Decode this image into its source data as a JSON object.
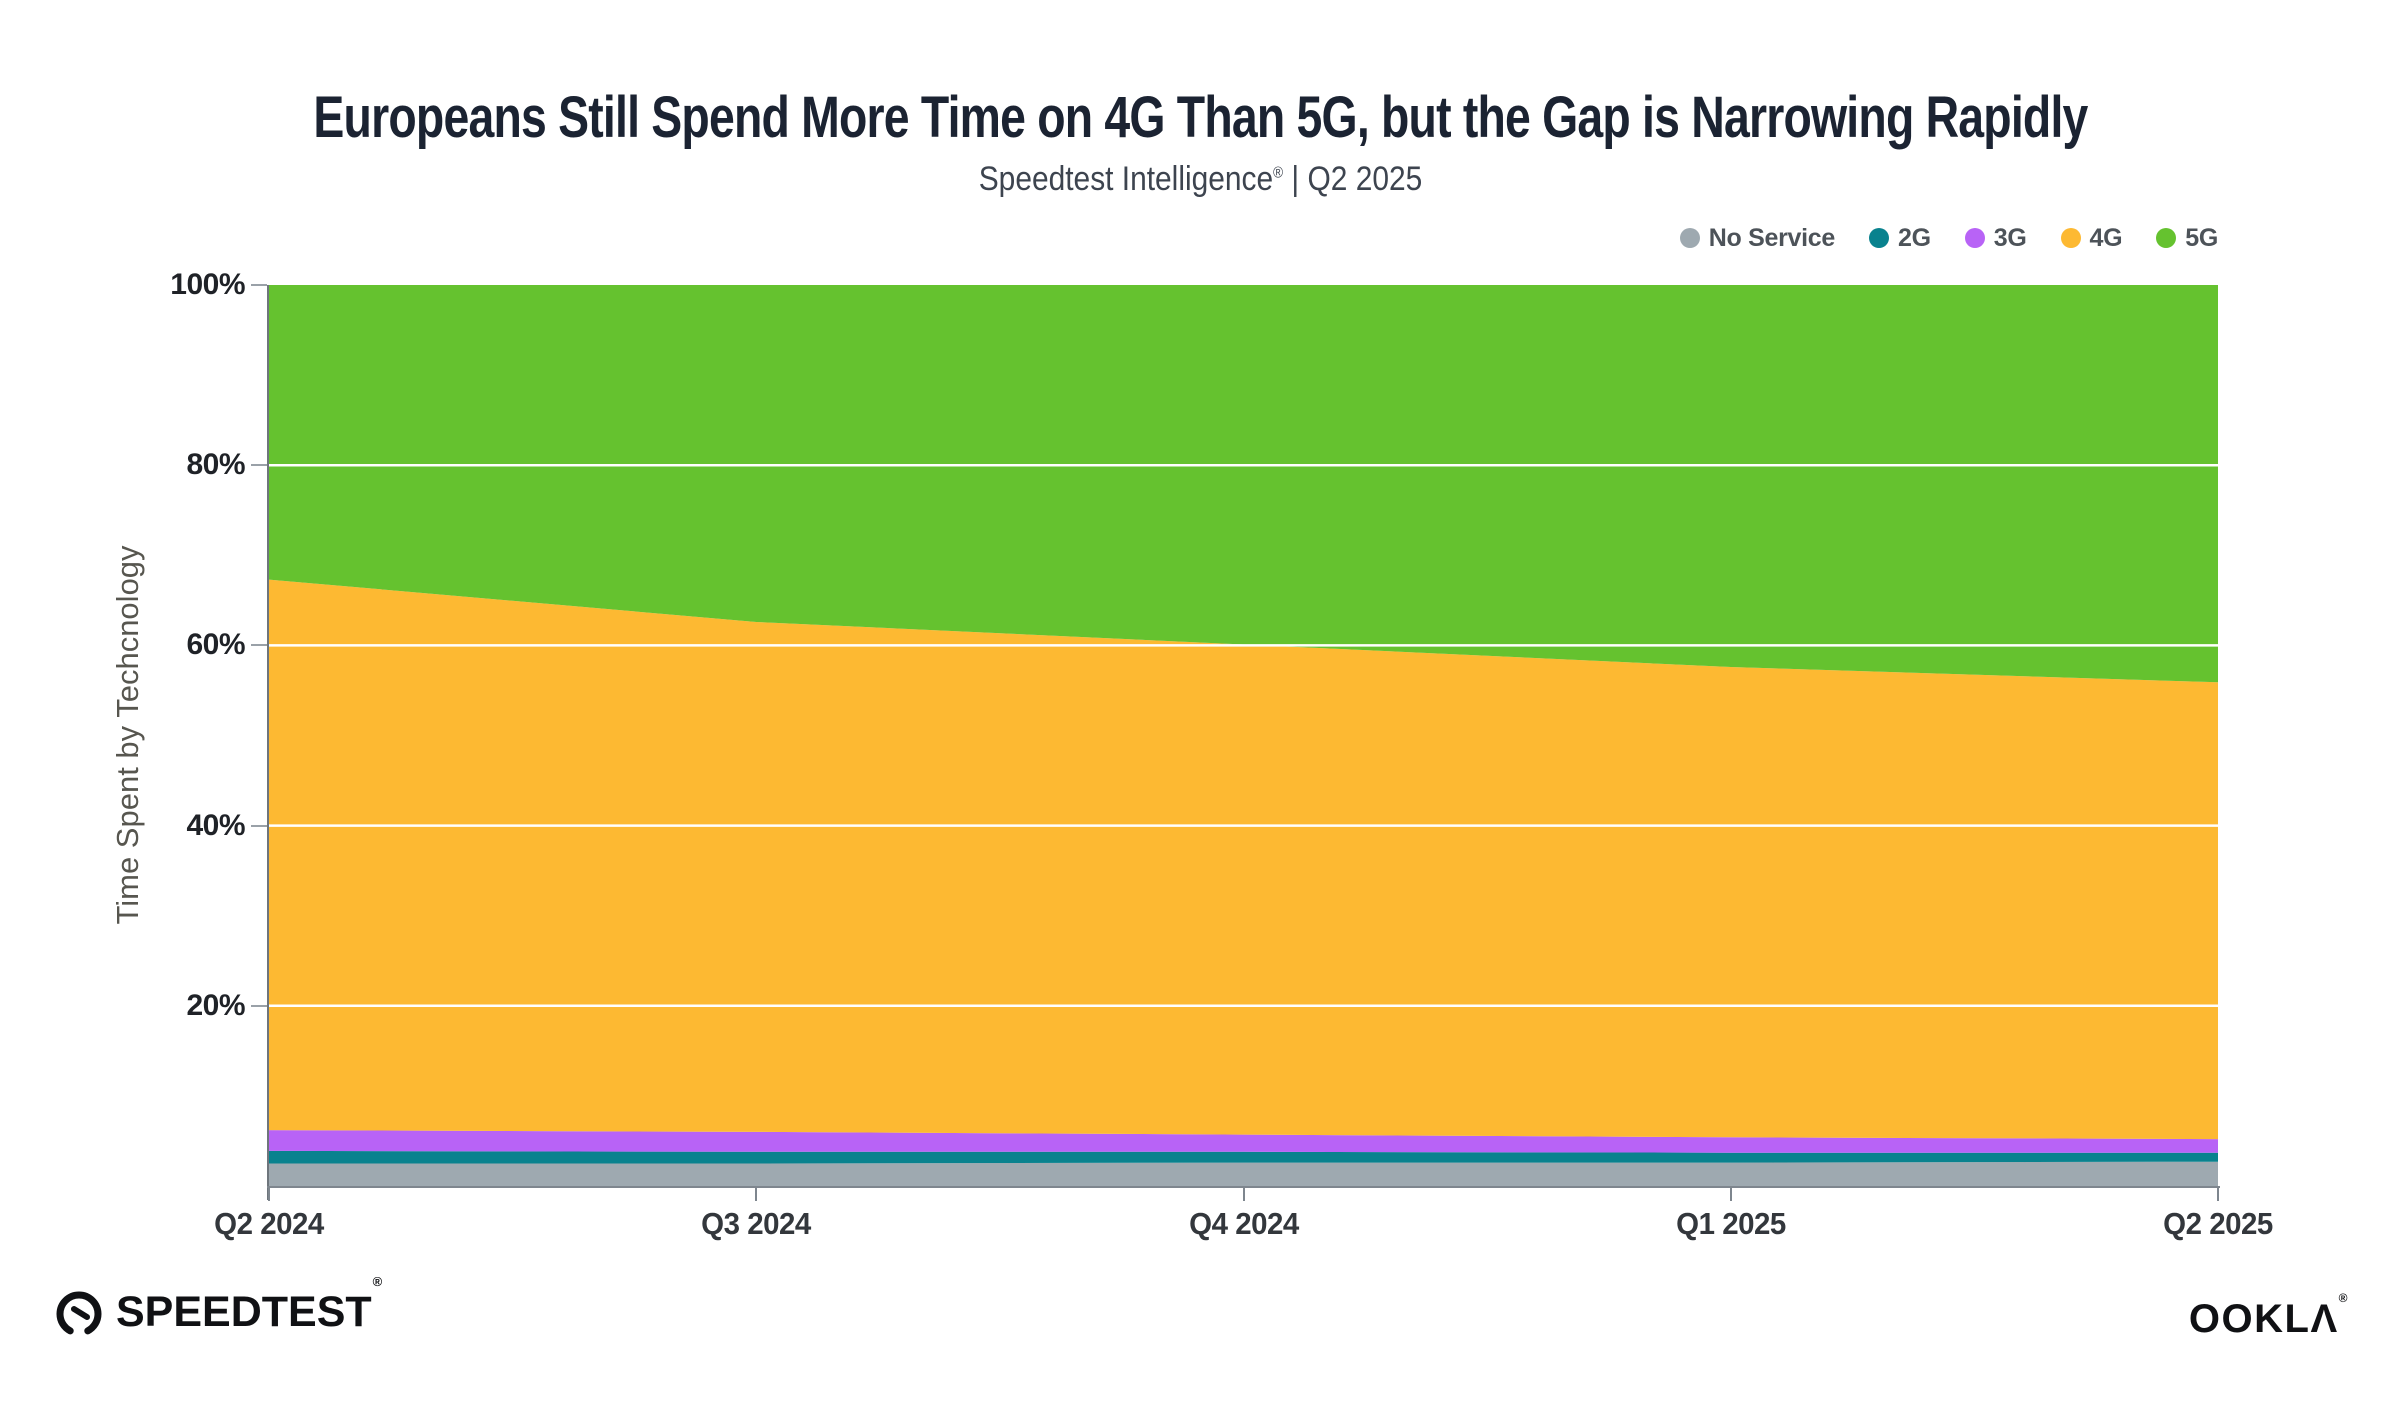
{
  "title": "Europeans Still Spend More Time on 4G Than 5G, but the Gap is Narrowing Rapidly",
  "subtitle": {
    "brand": "Speedtest Intelligence",
    "reg": "®",
    "period": " | Q2 2025"
  },
  "y_axis_title": "Time Spent by Techcnology",
  "footer": {
    "speedtest_text": "SPEEDTEST",
    "speedtest_reg": "®",
    "ookla_text": "OOKLΛ",
    "ookla_reg": "®"
  },
  "chart_data": {
    "type": "area",
    "stacked": true,
    "units": "percent",
    "title": "Europeans Still Spend More Time on 4G Than 5G, but the Gap is Narrowing Rapidly",
    "subtitle": "Speedtest Intelligence® | Q2 2025",
    "xlabel": "",
    "ylabel": "Time Spent by Techcnology",
    "ylim": [
      0,
      100
    ],
    "grid": "horizontal-white-lines",
    "legend_position": "top-right",
    "x": [
      "Q2 2024",
      "Q3 2024",
      "Q4 2024",
      "Q1 2025",
      "Q2 2025"
    ],
    "yticks": [
      {
        "value": 20,
        "label": "20%"
      },
      {
        "value": 40,
        "label": "40%"
      },
      {
        "value": 60,
        "label": "60%"
      },
      {
        "value": 80,
        "label": "80%"
      },
      {
        "value": 100,
        "label": "100%"
      }
    ],
    "series": [
      {
        "name": "No Service",
        "color": "#9EA9B0",
        "values": [
          2.5,
          2.5,
          2.6,
          2.6,
          2.7
        ]
      },
      {
        "name": "2G",
        "color": "#09828E",
        "values": [
          1.4,
          1.3,
          1.2,
          1.1,
          1.0
        ]
      },
      {
        "name": "3G",
        "color": "#B863F6",
        "values": [
          2.3,
          2.2,
          1.9,
          1.7,
          1.5
        ]
      },
      {
        "name": "4G",
        "color": "#FDB932",
        "values": [
          61.1,
          56.6,
          54.4,
          52.2,
          50.7
        ]
      },
      {
        "name": "5G",
        "color": "#65C22F",
        "values": [
          32.7,
          37.4,
          39.9,
          42.4,
          44.1
        ]
      }
    ]
  }
}
